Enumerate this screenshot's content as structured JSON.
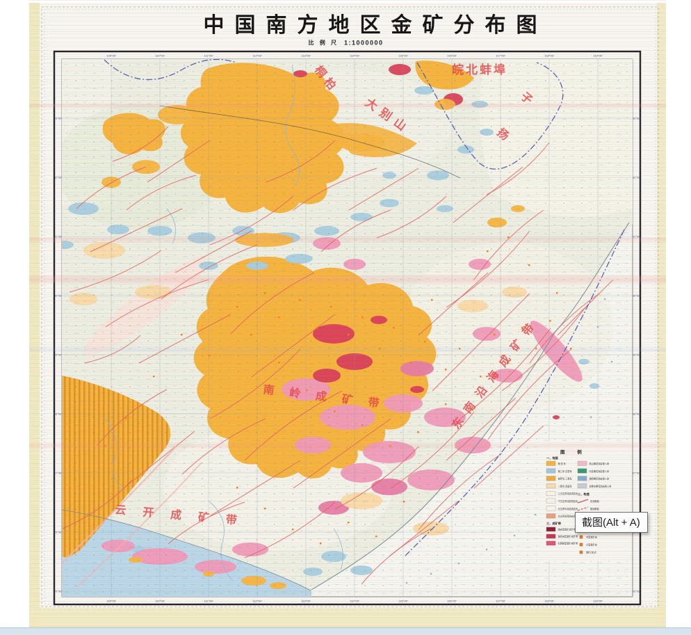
{
  "page": {
    "tooltip": "截图(Alt + A)"
  },
  "map": {
    "title": "中国南方地区金矿分布图",
    "scale_label": "比 例 尺",
    "scale_value": "1:1000000",
    "labels": [
      {
        "text": "桐柏"
      },
      {
        "text": "大别山"
      },
      {
        "text": "皖北蚌埠"
      },
      {
        "text": "扬"
      },
      {
        "text": "子"
      },
      {
        "text": "南岭成矿带"
      },
      {
        "text": "东南沿海成矿带"
      },
      {
        "text": "云开成矿带"
      }
    ],
    "lon_ticks": [
      "109°00′",
      "110°00′",
      "111°00′",
      "112°00′",
      "113°00′",
      "114°00′",
      "115°00′",
      "116°00′",
      "117°00′",
      "118°00′",
      "119°00′"
    ],
    "lat_ticks": [
      "33°00′",
      "32°00′",
      "31°00′",
      "30°00′",
      "29°00′",
      "28°00′",
      "27°00′",
      "26°00′",
      "25°00′"
    ]
  },
  "legend": {
    "title": "图  例",
    "col1": {
      "header": "一、地层",
      "items": [
        {
          "label": "第 四 系",
          "color": "#f5b43e"
        },
        {
          "label": "第三系·白垩系",
          "color": "#9fc6dc"
        },
        {
          "label": "侏罗系·三叠系",
          "color": "#f2a93c"
        },
        {
          "label": "二叠系·泥盆系",
          "color": "#f7dcae"
        },
        {
          "label": "上古生界浅变质岩系",
          "color": "#f8f4e8"
        },
        {
          "label": "下古生界浅变质岩系",
          "color": "#f8f4e8"
        },
        {
          "label": "元古界中深变质岩系",
          "color": "#f8f4e8"
        },
        {
          "label": "太古界深变质岩系",
          "color": "#e8a07c"
        }
      ],
      "header2": "三、成矿带",
      "items2": [
        {
          "label": "绿岩型金矿成矿带",
          "color": "#8e1f33"
        },
        {
          "label": "蚀变岩型金矿成矿带",
          "color": "#c43a50"
        },
        {
          "label": "石英脉型金矿成矿带",
          "color": "#e05570"
        }
      ]
    },
    "col2": {
      "items": [
        {
          "label": "燕山期花岗岩侵入体",
          "color": "#f2bccb"
        },
        {
          "label": "印支期花岗岩侵入体",
          "color": "#2f9b6e"
        },
        {
          "label": "海西期花岗岩侵入体",
          "color": "#84aed0"
        },
        {
          "label": "加里东期花岗岩侵入体",
          "color": "#c6cdd8"
        }
      ],
      "header_structure": "二、构造",
      "structure_items": [
        {
          "label": "实测断裂"
        },
        {
          "label": "推测断裂"
        }
      ],
      "header_mineral": "三、矿产",
      "mineral_items": [
        {
          "label": "大型金矿床"
        },
        {
          "label": "中型金矿床"
        },
        {
          "label": "小型金矿床"
        },
        {
          "label": "金矿(化)点"
        }
      ]
    }
  },
  "colors": {
    "fault": "#e2625f",
    "mine_dot": "#f08018",
    "boundary_blue": "#5560b2",
    "grid": "#8e97a6",
    "sea": "#b9d7e6",
    "orange": "#f5b43e",
    "tan": "#f8d9a4",
    "pink": "#ef9ab8",
    "deep_pink": "#e57ca4",
    "crimson": "#d8405a",
    "blue_patch": "#a7cdde",
    "label_red": "#e64545"
  }
}
